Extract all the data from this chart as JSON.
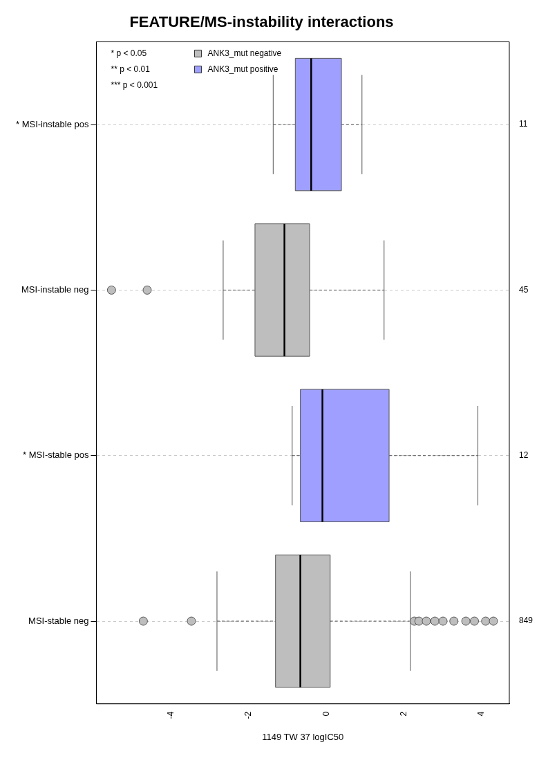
{
  "chart_data": {
    "type": "box",
    "orientation": "horizontal",
    "title": "FEATURE/MS-instability interactions",
    "xlabel": "1149 TW 37 logIC50",
    "categories": [
      "* MSI-instable pos",
      "MSI-instable neg",
      "* MSI-stable pos",
      "MSI-stable neg"
    ],
    "series": [
      {
        "name": "ANK3_mut negative",
        "color": "#bebebe",
        "boxes": [
          null,
          {
            "low": -2.66,
            "q1": -1.84,
            "median": -1.08,
            "q3": -0.43,
            "high": 1.49,
            "outliers": [
              -5.54,
              -4.62
            ]
          },
          null,
          {
            "low": -2.82,
            "q1": -1.31,
            "median": -0.67,
            "q3": 0.1,
            "high": 2.17,
            "outliers": [
              -4.72,
              -3.48,
              2.27,
              2.39,
              2.58,
              2.8,
              3.01,
              3.29,
              3.6,
              3.82,
              4.11,
              4.31
            ]
          }
        ]
      },
      {
        "name": "ANK3_mut positive",
        "color": "#9f9fff",
        "boxes": [
          {
            "low": -1.37,
            "q1": -0.8,
            "median": -0.39,
            "q3": 0.39,
            "high": 0.92
          },
          null,
          {
            "low": -0.88,
            "q1": -0.67,
            "median": -0.1,
            "q3": 1.62,
            "high": 3.91
          },
          null
        ]
      }
    ],
    "xlim": [
      -5.93,
      4.72
    ],
    "xticks": [
      -4,
      -2,
      0,
      2,
      4
    ],
    "grid": "y",
    "legend": "top left",
    "marker": "circle",
    "annotations": [
      "* p < 0.05",
      "** p < 0.01",
      "*** p < 0.001",
      "11",
      "45",
      "12",
      "849"
    ]
  }
}
